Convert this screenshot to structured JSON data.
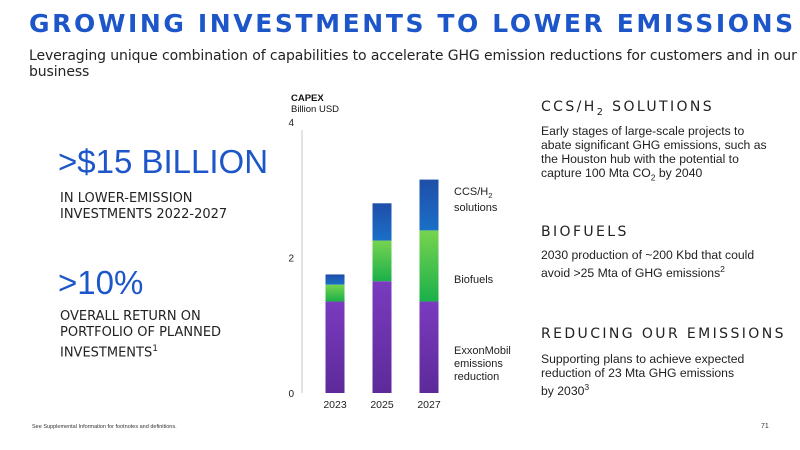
{
  "header": {
    "title": "GROWING INVESTMENTS TO LOWER EMISSIONS",
    "subtitle": "Leveraging unique combination of capabilities to accelerate GHG emission reductions for customers and in our business"
  },
  "stats": [
    {
      "value": ">$15 BILLION",
      "label_line1": "IN LOWER-EMISSION",
      "label_line2": "INVESTMENTS 2022-2027"
    },
    {
      "value": ">10%",
      "label_line1": "OVERALL RETURN ON",
      "label_line2": "PORTFOLIO OF PLANNED",
      "label_line3": "INVESTMENTS",
      "label_sup": "1"
    }
  ],
  "right": {
    "ccs_heading_pre": "CCS/H",
    "ccs_heading_sub": "2",
    "ccs_heading_post": " SOLUTIONS",
    "ccs_text_1": "Early stages of large-scale projects to",
    "ccs_text_2": "abate significant GHG emissions, such as",
    "ccs_text_3": "the Houston hub with the potential to",
    "ccs_text_4a": "capture 100 Mta CO",
    "ccs_text_4sub": "2",
    "ccs_text_4b": " by 2040",
    "bio_heading": "BIOFUELS",
    "bio_text_1": "2030 production of ~200 Kbd that could",
    "bio_text_2": "avoid >25 Mta of GHG emissions",
    "bio_sup": "2",
    "red_heading": "REDUCING OUR EMISSIONS",
    "red_text_1": "Supporting plans to achieve expected",
    "red_text_2": "reduction of 23 Mta GHG emissions",
    "red_text_3": "by 2030",
    "red_sup": "3"
  },
  "chart_data": {
    "type": "bar",
    "stacked": true,
    "ylabel_line1": "CAPEX",
    "ylabel_line2": "Billion USD",
    "ylim": [
      0,
      4
    ],
    "yticks": [
      0,
      2,
      4
    ],
    "categories": [
      "2023",
      "2025",
      "2027"
    ],
    "series": [
      {
        "name": "ExxonMobil emissions reduction",
        "values": [
          1.35,
          1.65,
          1.35
        ],
        "color_bottom": "#5d2a9a",
        "color_top": "#7a3bbf"
      },
      {
        "name": "Biofuels",
        "values": [
          0.25,
          0.6,
          1.05
        ],
        "color_bottom": "#1ab04a",
        "color_top": "#77d44f"
      },
      {
        "name": "CCS/H2 solutions",
        "values": [
          0.15,
          0.55,
          0.75
        ],
        "color_bottom": "#1a6fc8",
        "color_top": "#1f4ea8"
      }
    ],
    "segment_labels": {
      "ccs_line1": "CCS/H",
      "ccs_sub": "2",
      "ccs_line2": "solutions",
      "bio": "Biofuels",
      "xom_line1": "ExxonMobil",
      "xom_line2": "emissions",
      "xom_line3": "reduction"
    }
  },
  "footer": {
    "note": "See Supplemental Information for footnotes and definitions.",
    "page": "71"
  }
}
